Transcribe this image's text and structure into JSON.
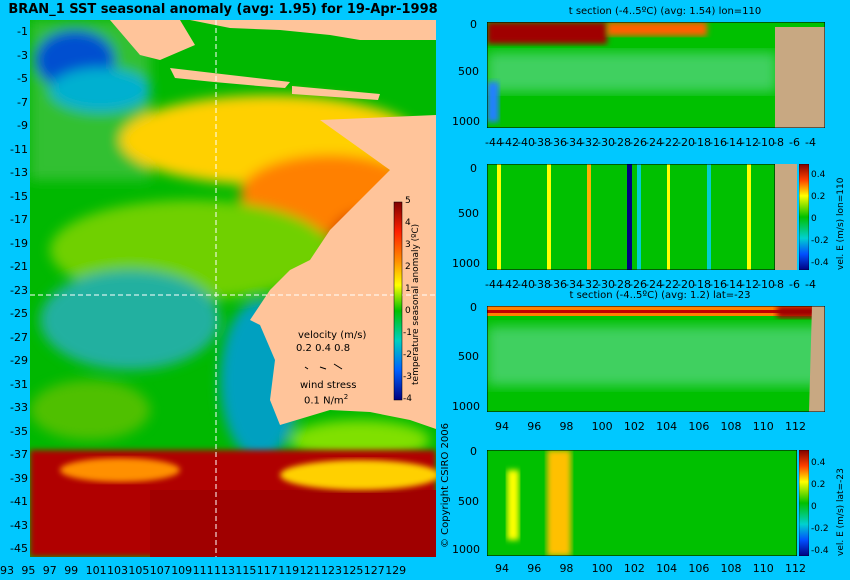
{
  "title": "BRAN_1  SST seasonal anomaly  (avg: 1.95)  for 19-Apr-1998",
  "copyright": "© Copyright CSIRO 2006",
  "map": {
    "lat_labels": [
      "-1",
      "-3",
      "-5",
      "-7",
      "-9",
      "-11",
      "-13",
      "-15",
      "-17",
      "-19",
      "-21",
      "-23",
      "-25",
      "-27",
      "-29",
      "-31",
      "-33",
      "-35",
      "-37",
      "-39",
      "-41",
      "-43",
      "-45"
    ],
    "lon_labels": [
      "93",
      "95",
      "97",
      "99",
      "101",
      "103",
      "105",
      "107",
      "109",
      "111",
      "113",
      "115",
      "117",
      "119",
      "121",
      "123",
      "125",
      "127",
      "129"
    ],
    "section_lat": -23,
    "section_lon": 110,
    "colorbar": {
      "label": "temperature seasonal anomaly (ºC)",
      "ticks": [
        "5",
        "4",
        "3",
        "2",
        "1",
        "0",
        "-1",
        "-2",
        "-3",
        "-4"
      ]
    },
    "velocity_legend": {
      "title": "velocity (m/s)",
      "values": "0.2 0.4 0.8",
      "wind_title": "wind stress",
      "wind_value": "0.1 N/m",
      "wind_exp": "2"
    }
  },
  "panels": {
    "p1": {
      "title": "t section  (-4..5ºC)  (avg: 1.54)  lon=110",
      "y_ticks": [
        "0",
        "500",
        "1000"
      ],
      "x_ticks": [
        "-44",
        "-42",
        "-40",
        "-38",
        "-36",
        "-34",
        "-32",
        "-30",
        "-28",
        "-26",
        "-24",
        "-22",
        "-20",
        "-18",
        "-16",
        "-14",
        "-12",
        "-10",
        "-8",
        "-6",
        "-4"
      ]
    },
    "p2": {
      "y_ticks": [
        "0",
        "500",
        "1000"
      ],
      "x_ticks": [
        "-44",
        "-42",
        "-40",
        "-38",
        "-36",
        "-34",
        "-32",
        "-30",
        "-28",
        "-26",
        "-24",
        "-22",
        "-20",
        "-18",
        "-16",
        "-14",
        "-12",
        "-10",
        "-8",
        "-6",
        "-4"
      ],
      "colorbar_label": "vel. E (m/s) lon=110",
      "colorbar_ticks": [
        "0.4",
        "0.2",
        "0",
        "-0.2",
        "-0.4"
      ]
    },
    "p3": {
      "title": "t section  (-4..5ºC)  (avg: 1.2)  lat=-23",
      "y_ticks": [
        "0",
        "500",
        "1000"
      ],
      "x_ticks": [
        "94",
        "96",
        "98",
        "100",
        "102",
        "104",
        "106",
        "108",
        "110",
        "112"
      ]
    },
    "p4": {
      "y_ticks": [
        "0",
        "500",
        "1000"
      ],
      "x_ticks": [
        "94",
        "96",
        "98",
        "100",
        "102",
        "104",
        "106",
        "108",
        "110",
        "112"
      ],
      "colorbar_label": "vel. E (m/s) lat=-23",
      "colorbar_ticks": [
        "0.4",
        "0.2",
        "0",
        "-0.2",
        "-0.4"
      ]
    }
  },
  "colors": {
    "background": "#00c8ff",
    "land": "#ffc49a",
    "panel_land": "#c8a882",
    "anomaly_hot": "#a00000",
    "anomaly_warm": "#ff8000",
    "anomaly_mid": "#ffff00",
    "anomaly_zero": "#00c000",
    "anomaly_cool": "#00c0c0",
    "anomaly_cold": "#0020a0"
  }
}
